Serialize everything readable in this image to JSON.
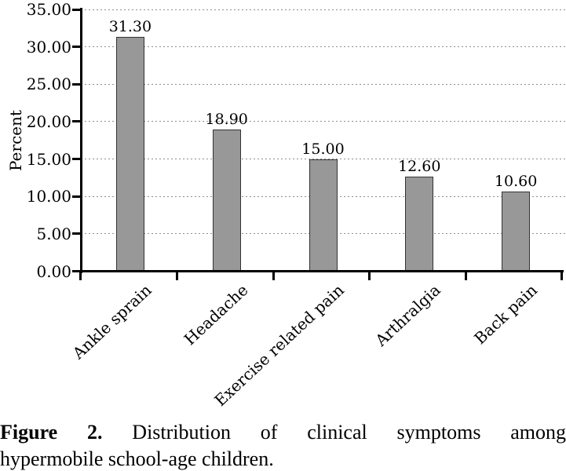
{
  "chart_data": {
    "type": "bar",
    "title": "",
    "xlabel": "",
    "ylabel": "Percent",
    "categories": [
      "Ankle sprain",
      "Headache",
      "Exercise related pain",
      "Arthralgia",
      "Back pain"
    ],
    "values": [
      31.3,
      18.9,
      15.0,
      12.6,
      10.6
    ],
    "value_labels": [
      "31.30",
      "18.90",
      "15.00",
      "12.60",
      "10.60"
    ],
    "ylim": [
      0,
      35
    ],
    "ytick_step": 5,
    "ytick_labels": [
      "0.00",
      "5.00",
      "10.00",
      "15.00",
      "20.00",
      "25.00",
      "30.00",
      "35.00"
    ],
    "grid": "horizontal-dotted",
    "legend": "none",
    "bar_fill_color": "#989898",
    "bar_border_color": "#333333",
    "axis_color": "#000000",
    "gridline_color": "#8e8e8e"
  },
  "caption": {
    "label": "Figure 2.",
    "line1_rest": "Distribution of clinical symptoms among",
    "line2": "hypermobile school-age children."
  }
}
